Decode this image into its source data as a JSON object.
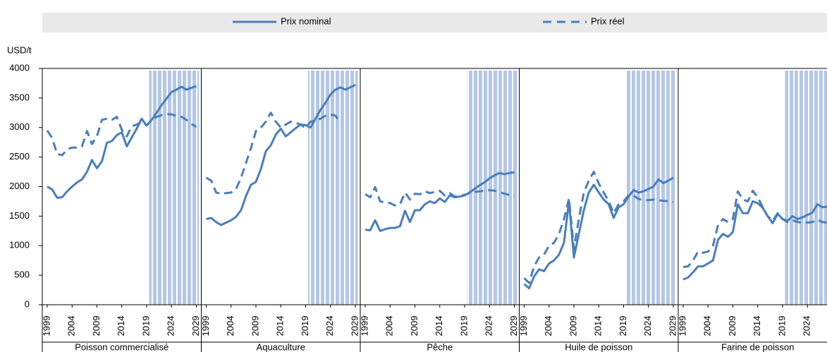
{
  "chart_data": {
    "type": "line",
    "unit": "USD/t",
    "ylim": [
      0,
      4000
    ],
    "yticks": [
      0,
      500,
      1000,
      1500,
      2000,
      2500,
      3000,
      3500,
      4000
    ],
    "x": [
      1999,
      2000,
      2001,
      2002,
      2003,
      2004,
      2005,
      2006,
      2007,
      2008,
      2009,
      2010,
      2011,
      2012,
      2013,
      2014,
      2015,
      2016,
      2017,
      2018,
      2019,
      2020,
      2021,
      2022,
      2023,
      2024,
      2025,
      2026,
      2027,
      2028,
      2029
    ],
    "xticks": [
      1999,
      2004,
      2009,
      2014,
      2019,
      2024,
      2029
    ],
    "projection": [
      2020,
      2029
    ],
    "legend": [
      {
        "name": "Prix nominal",
        "color": "#4a7ebb",
        "dashed": false
      },
      {
        "name": "Prix réel",
        "color": "#4a7ebb",
        "dashed": true
      }
    ],
    "panels": [
      {
        "title": "Poisson commercialisé",
        "series": [
          {
            "values": [
              2000,
              1950,
              1810,
              1820,
              1920,
              2000,
              2070,
              2120,
              2250,
              2450,
              2310,
              2430,
              2740,
              2770,
              2870,
              2920,
              2680,
              2830,
              2980,
              3150,
              3030,
              3130,
              3250,
              3380,
              3490,
              3600,
              3640,
              3690,
              3640,
              3670,
              3700
            ]
          },
          {
            "values": [
              2950,
              2820,
              2550,
              2530,
              2630,
              2660,
              2660,
              2680,
              2940,
              2720,
              2850,
              3130,
              3150,
              3130,
              3180,
              2960,
              2850,
              3020,
              3050,
              3100,
              3040,
              3120,
              3180,
              3210,
              3230,
              3220,
              3200,
              3180,
              3130,
              3060,
              3010
            ]
          }
        ]
      },
      {
        "title": "Aquaculture",
        "series": [
          {
            "values": [
              1450,
              1470,
              1400,
              1350,
              1390,
              1430,
              1490,
              1600,
              1840,
              2030,
              2080,
              2300,
              2600,
              2700,
              2880,
              2980,
              2850,
              2920,
              2990,
              3050,
              3040,
              3000,
              3150,
              3300,
              3420,
              3560,
              3640,
              3680,
              3640,
              3680,
              3720
            ]
          },
          {
            "values": [
              2150,
              2100,
              1900,
              1880,
              1890,
              1900,
              1960,
              2150,
              2400,
              2650,
              2940,
              3000,
              3100,
              3250,
              3100,
              3000,
              3050,
              3100,
              3080,
              3050,
              2990,
              3100,
              3120,
              3150,
              3200,
              3220,
              3200,
              3080,
              null,
              null,
              null
            ]
          }
        ]
      },
      {
        "title": "Pêche",
        "series": [
          {
            "values": [
              1270,
              1260,
              1430,
              1250,
              1280,
              1300,
              1300,
              1330,
              1590,
              1400,
              1600,
              1600,
              1700,
              1750,
              1720,
              1800,
              1740,
              1850,
              1820,
              1830,
              1850,
              1900,
              1960,
              2020,
              2070,
              2140,
              2190,
              2230,
              2210,
              2230,
              2240
            ]
          },
          {
            "values": [
              1870,
              1820,
              1990,
              1750,
              1730,
              1720,
              1680,
              1700,
              1900,
              1780,
              1880,
              1870,
              1920,
              1890,
              1910,
              1930,
              1850,
              1890,
              1830,
              1840,
              1860,
              1890,
              1910,
              1920,
              1930,
              1940,
              1930,
              1910,
              1880,
              1860,
              1830
            ]
          }
        ]
      },
      {
        "title": "Huile de poisson",
        "series": [
          {
            "values": [
              350,
              280,
              480,
              600,
              570,
              700,
              750,
              850,
              1050,
              1750,
              800,
              1200,
              1600,
              1900,
              2030,
              1900,
              1780,
              1700,
              1470,
              1650,
              1700,
              1830,
              1940,
              1900,
              1920,
              1960,
              2000,
              2120,
              2060,
              2100,
              2150
            ]
          },
          {
            "values": [
              450,
              370,
              650,
              800,
              850,
              1000,
              1050,
              1200,
              1450,
              1800,
              950,
              1450,
              1900,
              2100,
              2250,
              2050,
              1900,
              1750,
              1550,
              1700,
              1750,
              1850,
              1850,
              1790,
              1770,
              1770,
              1780,
              1770,
              1760,
              1750,
              1740
            ]
          }
        ]
      },
      {
        "title": "Farine de poisson",
        "series": [
          {
            "values": [
              430,
              460,
              550,
              650,
              650,
              700,
              750,
              1100,
              1200,
              1150,
              1230,
              1700,
              1550,
              1550,
              1750,
              1720,
              1640,
              1500,
              1380,
              1540,
              1450,
              1420,
              1500,
              1450,
              1480,
              1520,
              1560,
              1700,
              1650,
              1660,
              1680
            ]
          },
          {
            "values": [
              640,
              650,
              750,
              900,
              880,
              900,
              1000,
              1350,
              1450,
              1400,
              1450,
              1920,
              1780,
              1750,
              1930,
              1820,
              1650,
              1500,
              1420,
              1550,
              1450,
              1400,
              1430,
              1400,
              1390,
              1390,
              1400,
              1440,
              1400,
              1390,
              1370
            ]
          }
        ]
      }
    ]
  }
}
